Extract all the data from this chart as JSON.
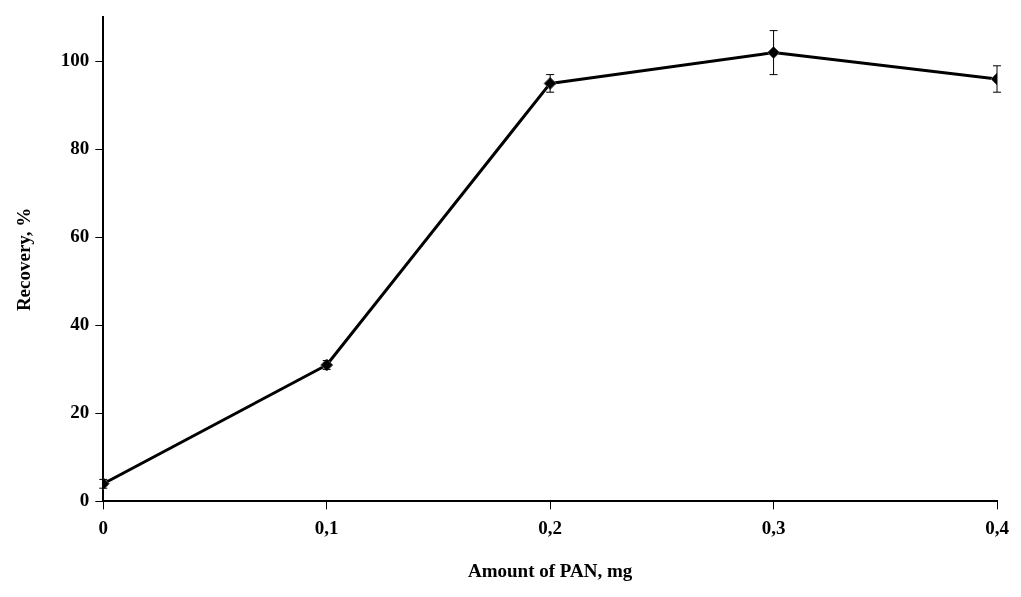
{
  "chart_data": {
    "type": "line",
    "xlabel": "Amount of PAN, mg",
    "ylabel": "Recovery, %",
    "x": [
      0,
      0.1,
      0.2,
      0.3,
      0.4
    ],
    "series": [
      {
        "color": "#000000",
        "values": [
          4,
          31,
          95,
          102,
          96
        ],
        "errors": [
          1,
          1,
          2,
          5,
          3
        ]
      }
    ],
    "xlim": [
      0,
      0.4
    ],
    "ylim": [
      0,
      110
    ],
    "xticks": [
      0,
      {
        "value": 0.1,
        "label": "0,1"
      },
      {
        "value": 0.2,
        "label": "0,2"
      },
      {
        "value": 0.3,
        "label": "0,3"
      },
      {
        "value": 0.4,
        "label": "0,4"
      }
    ],
    "yticks": [
      0,
      20,
      40,
      60,
      80,
      100
    ],
    "marker": "diamond",
    "line_style": "solid"
  }
}
